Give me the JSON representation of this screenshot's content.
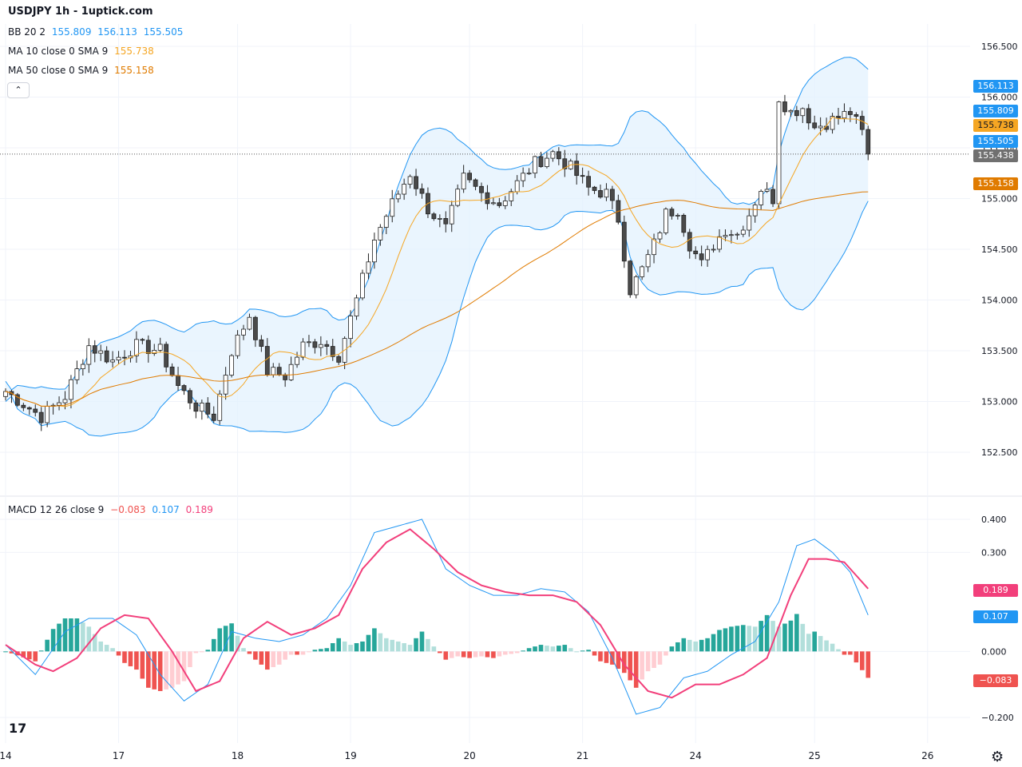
{
  "header": {
    "title": "USDJPY 1h - 1uptick.com",
    "bb": {
      "label": "BB 20 2",
      "middle": "155.809",
      "upper": "156.113",
      "lower": "155.505"
    },
    "ma10": {
      "label": "MA 10 close 0 SMA 9",
      "value": "155.738"
    },
    "ma50": {
      "label": "MA 50 close 0 SMA 9",
      "value": "155.158"
    },
    "collapse_icon": "chevron-up-icon"
  },
  "macd_legend": {
    "label": "MACD 12 26 close 9",
    "hist": "−0.083",
    "macd": "0.107",
    "signal": "0.189"
  },
  "badges": {
    "bb_upper": "156.113",
    "bb_middle": "155.809",
    "ma10": "155.738",
    "bb_lower": "155.505",
    "last": "155.438",
    "ma50": "155.158",
    "signal": "0.189",
    "macd": "0.107",
    "hist": "−0.083"
  },
  "logo_text": "17",
  "colors": {
    "up": "#ffffff",
    "down": "#4a4a4a",
    "bb_line": "#2196f3",
    "bb_fill": "#e3f2fd",
    "ma10": "#f5a623",
    "ma50": "#e07b00",
    "macd": "#2196f3",
    "signal": "#f23f7b",
    "hist_pos_strong": "#26a69a",
    "hist_pos_weak": "#b2dfdb",
    "hist_neg_strong": "#ef5350",
    "hist_neg_weak": "#ffcdd2",
    "last_badge": "#707070"
  },
  "chart_data": [
    {
      "type": "candlestick",
      "series_name": "USDJPY 1h",
      "x_ticks": [
        "14",
        "17",
        "18",
        "19",
        "20",
        "21",
        "24",
        "25",
        "26"
      ],
      "y_ticks": [
        "152.500",
        "153.000",
        "153.500",
        "154.000",
        "154.500",
        "155.000",
        "155.500",
        "156.000",
        "156.500"
      ],
      "ylim": [
        152.2,
        156.8
      ],
      "last_price": 155.438,
      "grid": true,
      "bb_upper_now": 156.113,
      "bb_middle_now": 155.809,
      "bb_lower_now": 155.505,
      "ma10_now": 155.738,
      "ma50_now": 155.158,
      "close_path": [
        [
          0,
          153.1
        ],
        [
          6,
          152.85
        ],
        [
          10,
          153.05
        ],
        [
          14,
          153.55
        ],
        [
          18,
          153.4
        ],
        [
          22,
          153.55
        ],
        [
          26,
          153.5
        ],
        [
          29,
          153.15
        ],
        [
          32,
          152.95
        ],
        [
          35,
          152.85
        ],
        [
          38,
          153.5
        ],
        [
          41,
          153.85
        ],
        [
          44,
          153.3
        ],
        [
          47,
          153.25
        ],
        [
          50,
          153.55
        ],
        [
          53,
          153.6
        ],
        [
          56,
          153.45
        ],
        [
          59,
          154.0
        ],
        [
          62,
          154.6
        ],
        [
          65,
          154.95
        ],
        [
          68,
          155.25
        ],
        [
          71,
          154.9
        ],
        [
          74,
          154.7
        ],
        [
          77,
          155.2
        ],
        [
          80,
          155.05
        ],
        [
          83,
          154.95
        ],
        [
          86,
          155.15
        ],
        [
          89,
          155.35
        ],
        [
          92,
          155.45
        ],
        [
          95,
          155.3
        ],
        [
          98,
          155.1
        ],
        [
          101,
          155.05
        ],
        [
          103,
          154.8
        ],
        [
          105,
          154.1
        ],
        [
          107,
          154.3
        ],
        [
          109,
          154.55
        ],
        [
          111,
          154.85
        ],
        [
          113,
          154.9
        ],
        [
          115,
          154.55
        ],
        [
          117,
          154.35
        ],
        [
          119,
          154.55
        ],
        [
          121,
          154.7
        ],
        [
          123,
          154.65
        ],
        [
          125,
          154.85
        ],
        [
          127,
          155.1
        ],
        [
          129,
          155.0
        ],
        [
          130,
          156.0
        ],
        [
          132,
          155.85
        ],
        [
          134,
          155.9
        ],
        [
          136,
          155.7
        ],
        [
          138,
          155.75
        ],
        [
          140,
          155.8
        ],
        [
          142,
          155.85
        ],
        [
          144,
          155.65
        ],
        [
          145,
          155.44
        ]
      ]
    },
    {
      "type": "line",
      "title": "MACD 12 26 close 9",
      "y_ticks": [
        "0.400",
        "0.300",
        "0.000",
        "−0.200"
      ],
      "ylim": [
        -0.25,
        0.44
      ],
      "macd_now": 0.107,
      "signal_now": 0.189,
      "histogram_now": -0.083,
      "macd_path": [
        [
          0,
          0.02
        ],
        [
          5,
          -0.07
        ],
        [
          10,
          0.06
        ],
        [
          14,
          0.1
        ],
        [
          18,
          0.1
        ],
        [
          22,
          0.05
        ],
        [
          26,
          -0.07
        ],
        [
          30,
          -0.15
        ],
        [
          34,
          -0.1
        ],
        [
          38,
          0.06
        ],
        [
          42,
          0.04
        ],
        [
          46,
          0.03
        ],
        [
          50,
          0.05
        ],
        [
          54,
          0.1
        ],
        [
          58,
          0.2
        ],
        [
          62,
          0.36
        ],
        [
          66,
          0.38
        ],
        [
          70,
          0.4
        ],
        [
          74,
          0.25
        ],
        [
          78,
          0.2
        ],
        [
          82,
          0.17
        ],
        [
          86,
          0.17
        ],
        [
          90,
          0.19
        ],
        [
          94,
          0.18
        ],
        [
          98,
          0.12
        ],
        [
          102,
          -0.02
        ],
        [
          106,
          -0.19
        ],
        [
          110,
          -0.17
        ],
        [
          114,
          -0.08
        ],
        [
          118,
          -0.06
        ],
        [
          122,
          -0.01
        ],
        [
          126,
          0.03
        ],
        [
          130,
          0.15
        ],
        [
          133,
          0.32
        ],
        [
          136,
          0.34
        ],
        [
          139,
          0.3
        ],
        [
          142,
          0.24
        ],
        [
          145,
          0.11
        ]
      ],
      "signal_path": [
        [
          0,
          0.02
        ],
        [
          5,
          -0.04
        ],
        [
          8,
          -0.06
        ],
        [
          12,
          -0.02
        ],
        [
          16,
          0.07
        ],
        [
          20,
          0.11
        ],
        [
          24,
          0.1
        ],
        [
          28,
          0.0
        ],
        [
          32,
          -0.12
        ],
        [
          36,
          -0.09
        ],
        [
          40,
          0.04
        ],
        [
          44,
          0.09
        ],
        [
          48,
          0.05
        ],
        [
          52,
          0.07
        ],
        [
          56,
          0.11
        ],
        [
          60,
          0.25
        ],
        [
          64,
          0.33
        ],
        [
          68,
          0.37
        ],
        [
          72,
          0.31
        ],
        [
          76,
          0.24
        ],
        [
          80,
          0.2
        ],
        [
          84,
          0.18
        ],
        [
          88,
          0.17
        ],
        [
          92,
          0.17
        ],
        [
          96,
          0.15
        ],
        [
          100,
          0.08
        ],
        [
          104,
          -0.04
        ],
        [
          108,
          -0.12
        ],
        [
          112,
          -0.14
        ],
        [
          116,
          -0.1
        ],
        [
          120,
          -0.1
        ],
        [
          124,
          -0.07
        ],
        [
          128,
          -0.02
        ],
        [
          132,
          0.17
        ],
        [
          135,
          0.28
        ],
        [
          138,
          0.28
        ],
        [
          141,
          0.27
        ],
        [
          143,
          0.23
        ],
        [
          145,
          0.19
        ]
      ]
    }
  ]
}
